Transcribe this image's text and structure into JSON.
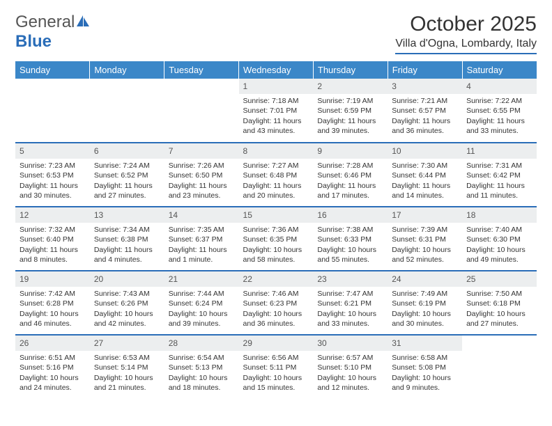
{
  "logo": {
    "text_a": "General",
    "text_b": "Blue"
  },
  "title": {
    "month": "October 2025",
    "location": "Villa d'Ogna, Lombardy, Italy"
  },
  "colors": {
    "header_bg": "#3b87c8",
    "accent": "#2a6db8",
    "daynum_bg": "#eceeef",
    "text": "#333333",
    "muted": "#555555",
    "page_bg": "#ffffff"
  },
  "typography": {
    "title_fontsize": 30,
    "location_fontsize": 16,
    "header_fontsize": 13,
    "daynum_fontsize": 12,
    "body_fontsize": 10.5
  },
  "weekdays": [
    "Sunday",
    "Monday",
    "Tuesday",
    "Wednesday",
    "Thursday",
    "Friday",
    "Saturday"
  ],
  "weeks": [
    [
      null,
      null,
      null,
      {
        "n": "1",
        "sunrise": "7:18 AM",
        "sunset": "7:01 PM",
        "dayh": "11",
        "daym": "43"
      },
      {
        "n": "2",
        "sunrise": "7:19 AM",
        "sunset": "6:59 PM",
        "dayh": "11",
        "daym": "39"
      },
      {
        "n": "3",
        "sunrise": "7:21 AM",
        "sunset": "6:57 PM",
        "dayh": "11",
        "daym": "36"
      },
      {
        "n": "4",
        "sunrise": "7:22 AM",
        "sunset": "6:55 PM",
        "dayh": "11",
        "daym": "33"
      }
    ],
    [
      {
        "n": "5",
        "sunrise": "7:23 AM",
        "sunset": "6:53 PM",
        "dayh": "11",
        "daym": "30"
      },
      {
        "n": "6",
        "sunrise": "7:24 AM",
        "sunset": "6:52 PM",
        "dayh": "11",
        "daym": "27"
      },
      {
        "n": "7",
        "sunrise": "7:26 AM",
        "sunset": "6:50 PM",
        "dayh": "11",
        "daym": "23"
      },
      {
        "n": "8",
        "sunrise": "7:27 AM",
        "sunset": "6:48 PM",
        "dayh": "11",
        "daym": "20"
      },
      {
        "n": "9",
        "sunrise": "7:28 AM",
        "sunset": "6:46 PM",
        "dayh": "11",
        "daym": "17"
      },
      {
        "n": "10",
        "sunrise": "7:30 AM",
        "sunset": "6:44 PM",
        "dayh": "11",
        "daym": "14"
      },
      {
        "n": "11",
        "sunrise": "7:31 AM",
        "sunset": "6:42 PM",
        "dayh": "11",
        "daym": "11"
      }
    ],
    [
      {
        "n": "12",
        "sunrise": "7:32 AM",
        "sunset": "6:40 PM",
        "dayh": "11",
        "daym": "8"
      },
      {
        "n": "13",
        "sunrise": "7:34 AM",
        "sunset": "6:38 PM",
        "dayh": "11",
        "daym": "4"
      },
      {
        "n": "14",
        "sunrise": "7:35 AM",
        "sunset": "6:37 PM",
        "dayh": "11",
        "daym": "1",
        "minute_word": "minute"
      },
      {
        "n": "15",
        "sunrise": "7:36 AM",
        "sunset": "6:35 PM",
        "dayh": "10",
        "daym": "58"
      },
      {
        "n": "16",
        "sunrise": "7:38 AM",
        "sunset": "6:33 PM",
        "dayh": "10",
        "daym": "55"
      },
      {
        "n": "17",
        "sunrise": "7:39 AM",
        "sunset": "6:31 PM",
        "dayh": "10",
        "daym": "52"
      },
      {
        "n": "18",
        "sunrise": "7:40 AM",
        "sunset": "6:30 PM",
        "dayh": "10",
        "daym": "49"
      }
    ],
    [
      {
        "n": "19",
        "sunrise": "7:42 AM",
        "sunset": "6:28 PM",
        "dayh": "10",
        "daym": "46"
      },
      {
        "n": "20",
        "sunrise": "7:43 AM",
        "sunset": "6:26 PM",
        "dayh": "10",
        "daym": "42"
      },
      {
        "n": "21",
        "sunrise": "7:44 AM",
        "sunset": "6:24 PM",
        "dayh": "10",
        "daym": "39"
      },
      {
        "n": "22",
        "sunrise": "7:46 AM",
        "sunset": "6:23 PM",
        "dayh": "10",
        "daym": "36"
      },
      {
        "n": "23",
        "sunrise": "7:47 AM",
        "sunset": "6:21 PM",
        "dayh": "10",
        "daym": "33"
      },
      {
        "n": "24",
        "sunrise": "7:49 AM",
        "sunset": "6:19 PM",
        "dayh": "10",
        "daym": "30"
      },
      {
        "n": "25",
        "sunrise": "7:50 AM",
        "sunset": "6:18 PM",
        "dayh": "10",
        "daym": "27"
      }
    ],
    [
      {
        "n": "26",
        "sunrise": "6:51 AM",
        "sunset": "5:16 PM",
        "dayh": "10",
        "daym": "24"
      },
      {
        "n": "27",
        "sunrise": "6:53 AM",
        "sunset": "5:14 PM",
        "dayh": "10",
        "daym": "21"
      },
      {
        "n": "28",
        "sunrise": "6:54 AM",
        "sunset": "5:13 PM",
        "dayh": "10",
        "daym": "18"
      },
      {
        "n": "29",
        "sunrise": "6:56 AM",
        "sunset": "5:11 PM",
        "dayh": "10",
        "daym": "15"
      },
      {
        "n": "30",
        "sunrise": "6:57 AM",
        "sunset": "5:10 PM",
        "dayh": "10",
        "daym": "12"
      },
      {
        "n": "31",
        "sunrise": "6:58 AM",
        "sunset": "5:08 PM",
        "dayh": "10",
        "daym": "9"
      },
      null
    ]
  ]
}
